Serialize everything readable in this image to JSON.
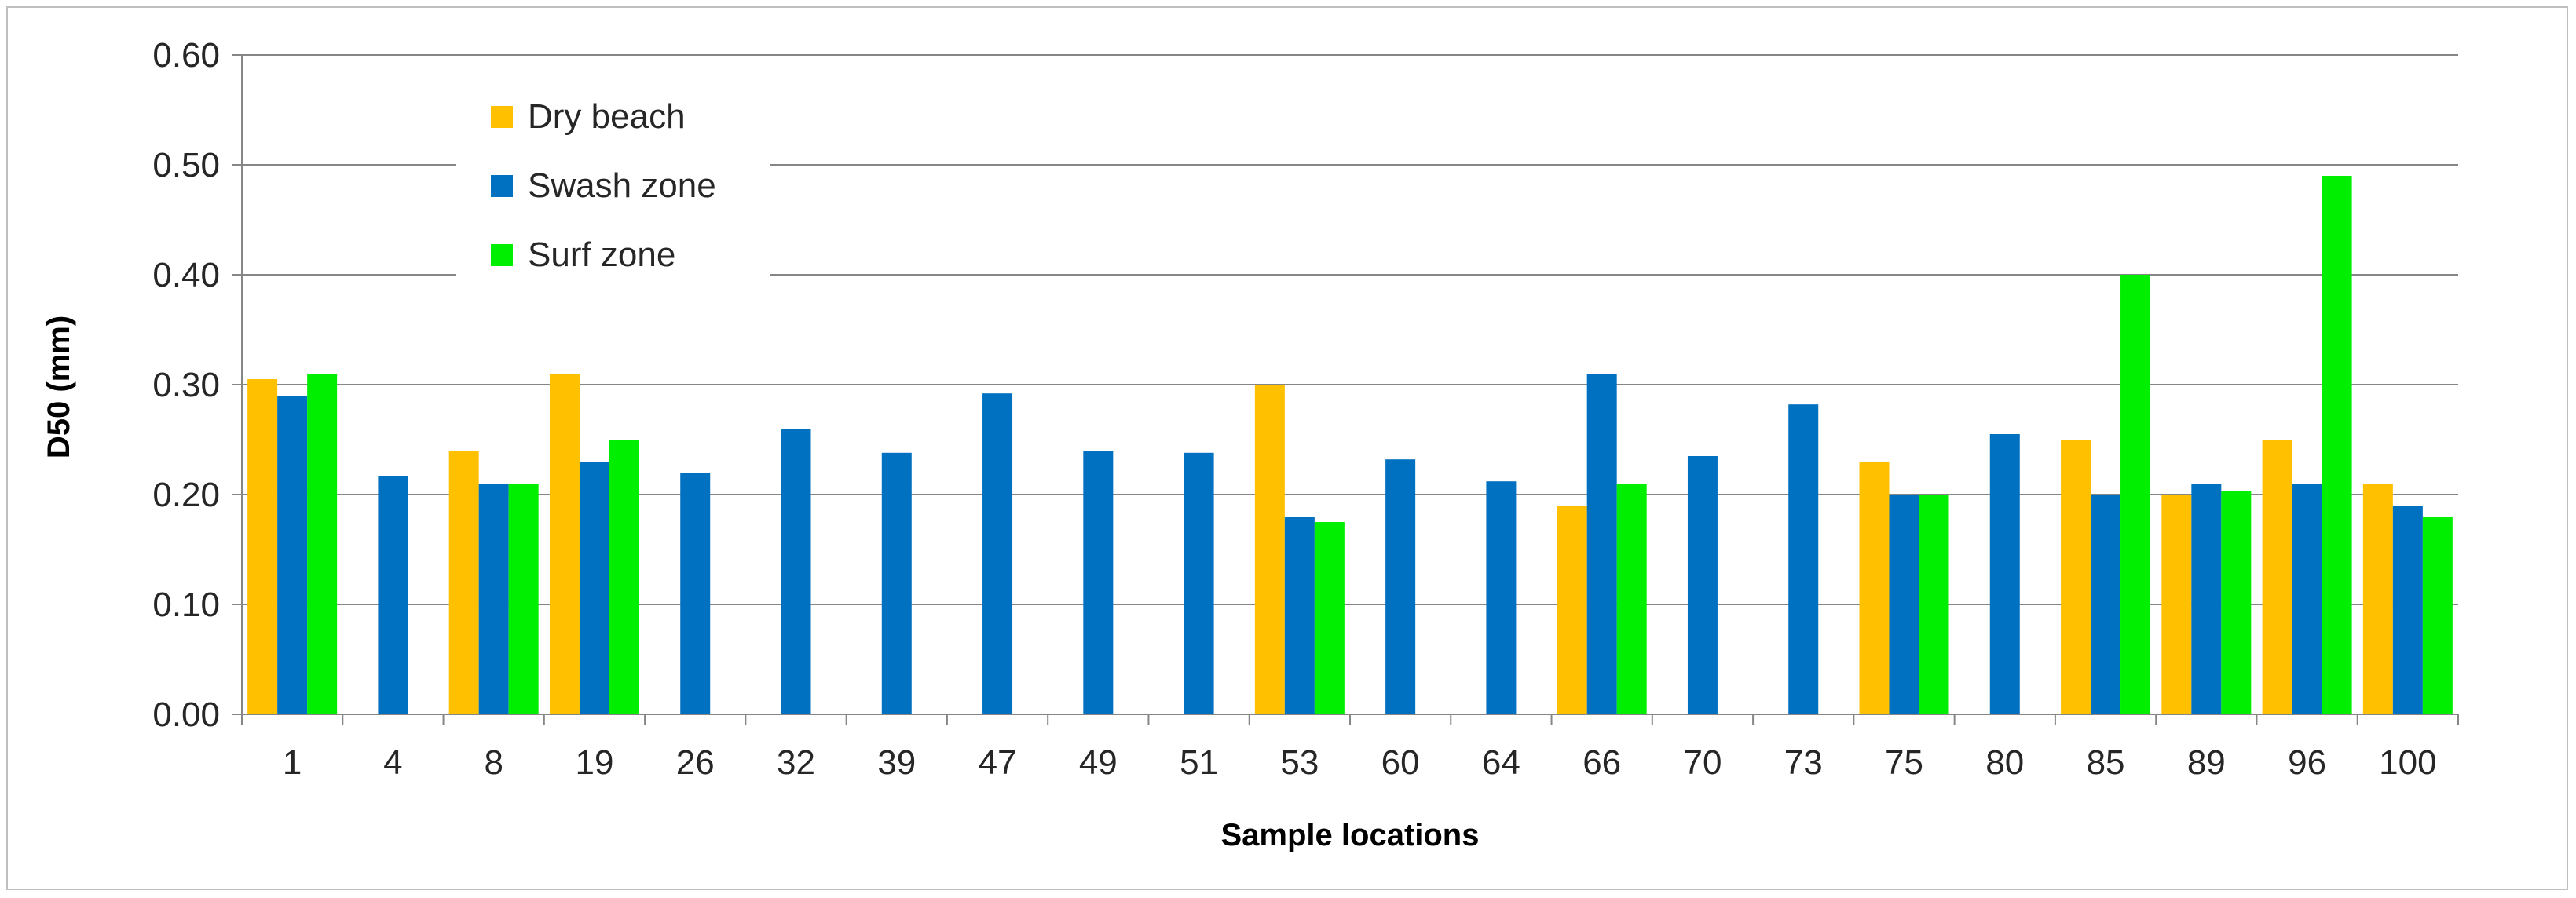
{
  "chart_data": {
    "type": "bar",
    "title": "",
    "xlabel": "Sample locations",
    "ylabel": "D50 (mm)",
    "ylim": [
      0,
      0.6
    ],
    "yticks": [
      "0.00",
      "0.10",
      "0.20",
      "0.30",
      "0.40",
      "0.50",
      "0.60"
    ],
    "grid": true,
    "legend_position": "top-left",
    "categories": [
      "1",
      "4",
      "8",
      "19",
      "26",
      "32",
      "39",
      "47",
      "49",
      "51",
      "53",
      "60",
      "64",
      "66",
      "70",
      "73",
      "75",
      "80",
      "85",
      "89",
      "96",
      "100"
    ],
    "series": [
      {
        "name": "Dry beach",
        "color": "#FFC000",
        "values": [
          0.305,
          null,
          0.24,
          0.31,
          null,
          null,
          null,
          null,
          null,
          null,
          0.3,
          null,
          null,
          0.19,
          null,
          null,
          0.23,
          null,
          0.25,
          0.2,
          0.25,
          0.21
        ]
      },
      {
        "name": "Swash zone",
        "color": "#0070C0",
        "values": [
          0.29,
          0.217,
          0.21,
          0.23,
          0.22,
          0.26,
          0.238,
          0.292,
          0.24,
          0.238,
          0.18,
          0.232,
          0.212,
          0.31,
          0.235,
          0.282,
          0.2,
          0.255,
          0.2,
          0.21,
          0.21,
          0.19
        ]
      },
      {
        "name": "Surf zone",
        "color": "#00EE00",
        "values": [
          0.31,
          null,
          0.21,
          0.25,
          null,
          null,
          null,
          null,
          null,
          null,
          0.175,
          null,
          null,
          0.21,
          null,
          null,
          0.2,
          null,
          0.4,
          0.203,
          0.49,
          0.18
        ]
      }
    ]
  }
}
